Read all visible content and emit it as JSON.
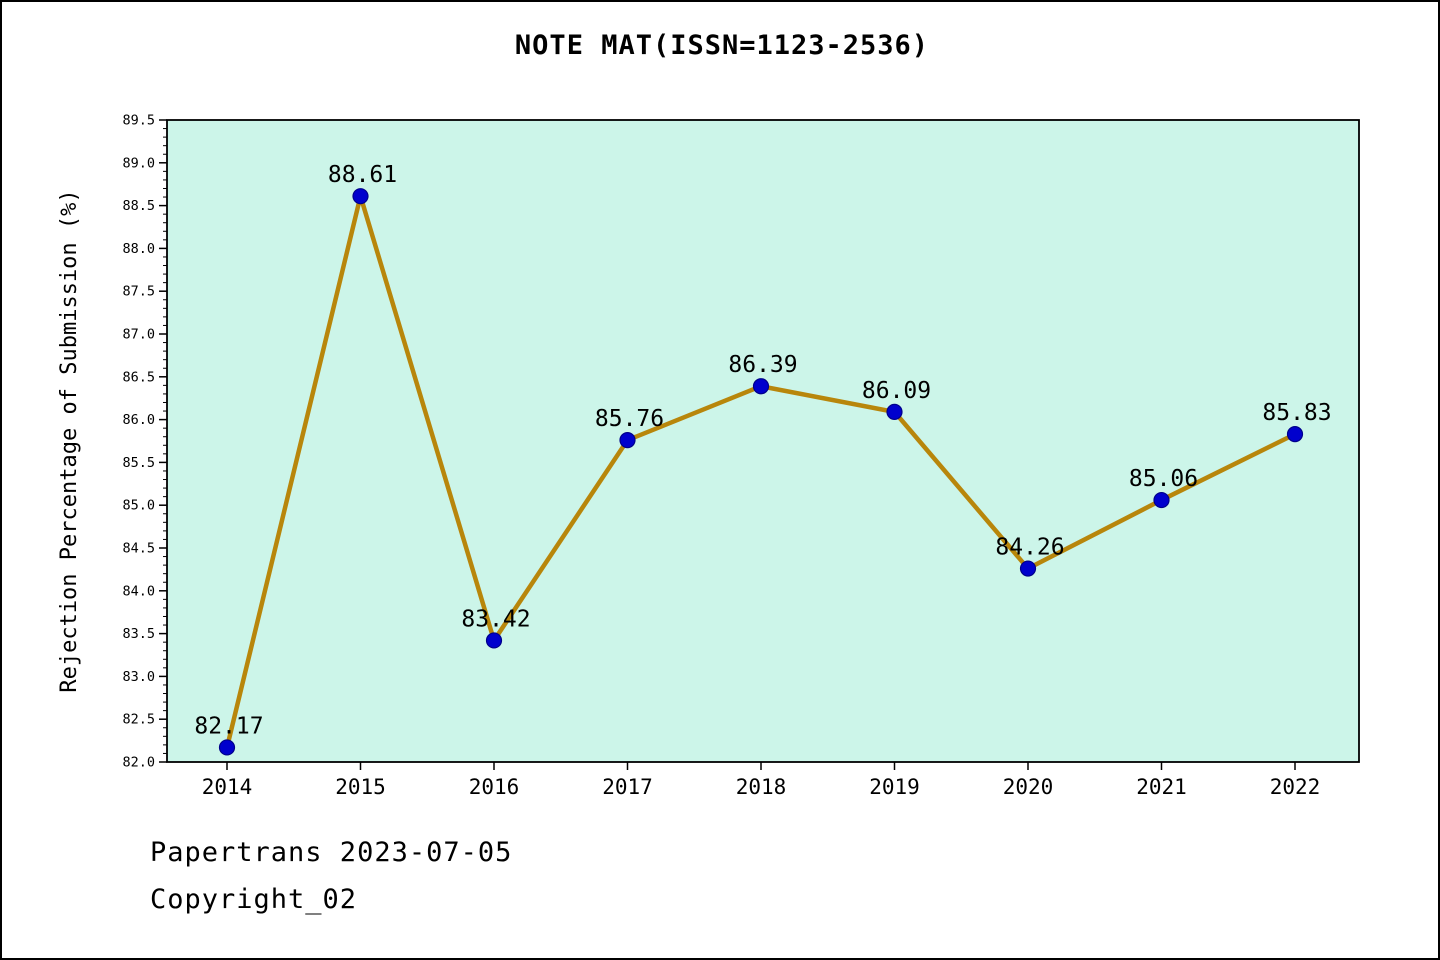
{
  "title": "NOTE MAT(ISSN=1123-2536)",
  "footer": {
    "line1": "Papertrans 2023-07-05",
    "line2": "Copyright_02"
  },
  "chart_data": {
    "type": "line",
    "title": "NOTE MAT(ISSN=1123-2536)",
    "x": [
      2014,
      2015,
      2016,
      2017,
      2018,
      2019,
      2020,
      2021,
      2022
    ],
    "values": [
      82.17,
      88.61,
      83.42,
      85.76,
      86.39,
      86.09,
      84.26,
      85.06,
      85.83
    ],
    "xlabel": "",
    "ylabel": "Rejection Percentage of Submission (%)",
    "ylim": [
      82.0,
      89.5
    ],
    "ytick_step": 0.5,
    "ytick_minor_step": 0.1,
    "grid": false,
    "legend": null,
    "colors": {
      "line": "#b8860b",
      "marker_fill": "#0000cd",
      "marker_edge": "#00008b",
      "plot_bg": "#ccf5e9",
      "axis": "#000000",
      "text": "#000000"
    }
  }
}
